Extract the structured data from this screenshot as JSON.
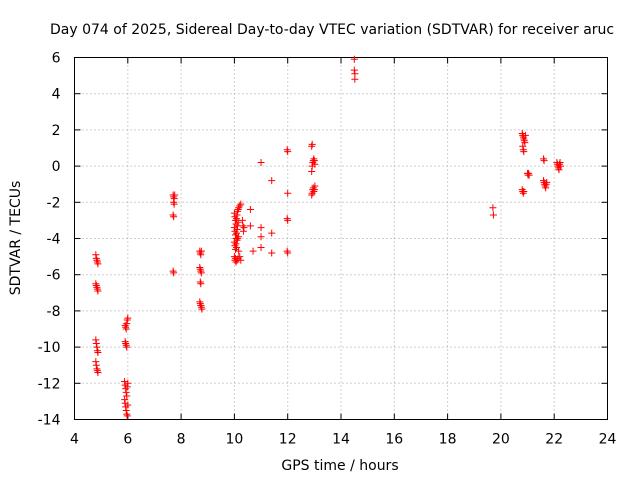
{
  "chart_data": {
    "type": "scatter",
    "title": "Day 074 of 2025, Sidereal Day-to-day VTEC variation (SDTVAR) for receiver aruc",
    "xlabel": "GPS time / hours",
    "ylabel": "SDTVAR / TECUs",
    "xlim": [
      4,
      24
    ],
    "ylim": [
      -14,
      6
    ],
    "xticks": [
      4,
      6,
      8,
      10,
      12,
      14,
      16,
      18,
      20,
      22,
      24
    ],
    "yticks": [
      -14,
      -12,
      -10,
      -8,
      -6,
      -4,
      -2,
      0,
      2,
      4,
      6
    ],
    "grid": true,
    "marker": "plus",
    "color": "#ff0000",
    "series": [
      {
        "name": "SDTVAR",
        "points": [
          [
            4.8,
            -4.9
          ],
          [
            4.82,
            -5.1
          ],
          [
            4.84,
            -5.2
          ],
          [
            4.86,
            -5.3
          ],
          [
            4.88,
            -5.4
          ],
          [
            4.8,
            -6.5
          ],
          [
            4.82,
            -6.6
          ],
          [
            4.84,
            -6.7
          ],
          [
            4.86,
            -6.8
          ],
          [
            4.88,
            -6.9
          ],
          [
            4.8,
            -9.6
          ],
          [
            4.82,
            -9.8
          ],
          [
            4.84,
            -10.0
          ],
          [
            4.86,
            -10.2
          ],
          [
            4.88,
            -10.3
          ],
          [
            4.8,
            -10.8
          ],
          [
            4.82,
            -11.0
          ],
          [
            4.84,
            -11.2
          ],
          [
            4.86,
            -11.3
          ],
          [
            4.88,
            -11.4
          ],
          [
            5.9,
            -8.8
          ],
          [
            5.92,
            -8.9
          ],
          [
            5.94,
            -9.0
          ],
          [
            5.96,
            -8.7
          ],
          [
            5.98,
            -8.5
          ],
          [
            6.0,
            -8.4
          ],
          [
            5.9,
            -9.7
          ],
          [
            5.92,
            -9.8
          ],
          [
            5.94,
            -9.9
          ],
          [
            5.96,
            -10.0
          ],
          [
            5.88,
            -11.9
          ],
          [
            5.9,
            -12.1
          ],
          [
            5.92,
            -12.3
          ],
          [
            5.94,
            -12.5
          ],
          [
            5.96,
            -12.7
          ],
          [
            5.98,
            -12.2
          ],
          [
            6.0,
            -12.0
          ],
          [
            5.88,
            -12.9
          ],
          [
            5.9,
            -13.1
          ],
          [
            5.92,
            -13.3
          ],
          [
            5.94,
            -13.5
          ],
          [
            5.96,
            -13.7
          ],
          [
            5.98,
            -13.8
          ],
          [
            6.0,
            -13.2
          ],
          [
            7.7,
            -1.6
          ],
          [
            7.72,
            -1.7
          ],
          [
            7.74,
            -1.8
          ],
          [
            7.76,
            -1.6
          ],
          [
            7.72,
            -2.0
          ],
          [
            7.74,
            -2.1
          ],
          [
            7.7,
            -2.7
          ],
          [
            7.72,
            -2.8
          ],
          [
            7.7,
            -5.8
          ],
          [
            7.72,
            -5.9
          ],
          [
            8.7,
            -4.7
          ],
          [
            8.72,
            -4.8
          ],
          [
            8.74,
            -4.9
          ],
          [
            8.76,
            -4.7
          ],
          [
            8.7,
            -5.6
          ],
          [
            8.72,
            -5.7
          ],
          [
            8.74,
            -5.8
          ],
          [
            8.76,
            -5.9
          ],
          [
            8.72,
            -6.4
          ],
          [
            8.74,
            -6.5
          ],
          [
            8.7,
            -7.5
          ],
          [
            8.72,
            -7.6
          ],
          [
            8.74,
            -7.7
          ],
          [
            8.76,
            -7.8
          ],
          [
            8.78,
            -7.9
          ],
          [
            10.0,
            -2.6
          ],
          [
            10.02,
            -2.8
          ],
          [
            10.04,
            -3.0
          ],
          [
            10.06,
            -3.2
          ],
          [
            10.08,
            -2.9
          ],
          [
            10.1,
            -2.7
          ],
          [
            10.12,
            -2.5
          ],
          [
            10.14,
            -2.4
          ],
          [
            10.16,
            -2.3
          ],
          [
            10.2,
            -2.2
          ],
          [
            10.24,
            -2.1
          ],
          [
            10.0,
            -3.4
          ],
          [
            10.02,
            -3.6
          ],
          [
            10.04,
            -3.8
          ],
          [
            10.06,
            -4.0
          ],
          [
            10.08,
            -3.7
          ],
          [
            10.1,
            -3.5
          ],
          [
            10.12,
            -3.3
          ],
          [
            10.14,
            -3.1
          ],
          [
            10.16,
            -3.9
          ],
          [
            10.0,
            -4.2
          ],
          [
            10.02,
            -4.4
          ],
          [
            10.04,
            -4.6
          ],
          [
            10.06,
            -4.3
          ],
          [
            10.08,
            -4.5
          ],
          [
            10.1,
            -4.1
          ],
          [
            10.12,
            -4.0
          ],
          [
            10.16,
            -4.7
          ],
          [
            10.0,
            -5.0
          ],
          [
            10.02,
            -5.2
          ],
          [
            10.04,
            -5.1
          ],
          [
            10.06,
            -5.3
          ],
          [
            10.1,
            -5.2
          ],
          [
            10.14,
            -5.1
          ],
          [
            10.2,
            -5.0
          ],
          [
            10.24,
            -5.2
          ],
          [
            10.3,
            -3.0
          ],
          [
            10.32,
            -3.3
          ],
          [
            10.34,
            -3.6
          ],
          [
            10.36,
            -3.4
          ],
          [
            10.6,
            -2.4
          ],
          [
            10.6,
            -3.3
          ],
          [
            10.7,
            -4.7
          ],
          [
            11.0,
            0.2
          ],
          [
            11.0,
            -3.4
          ],
          [
            11.0,
            -3.9
          ],
          [
            11.0,
            -4.5
          ],
          [
            11.4,
            -0.8
          ],
          [
            11.4,
            -3.7
          ],
          [
            11.4,
            -4.8
          ],
          [
            11.98,
            0.9
          ],
          [
            12.0,
            0.8
          ],
          [
            12.0,
            -1.5
          ],
          [
            11.98,
            -2.9
          ],
          [
            12.0,
            -3.0
          ],
          [
            11.98,
            -4.7
          ],
          [
            12.0,
            -4.8
          ],
          [
            12.9,
            1.1
          ],
          [
            12.92,
            1.2
          ],
          [
            12.9,
            -0.3
          ],
          [
            12.92,
            0.0
          ],
          [
            12.94,
            0.2
          ],
          [
            12.96,
            0.3
          ],
          [
            12.98,
            0.4
          ],
          [
            13.0,
            0.3
          ],
          [
            13.02,
            0.1
          ],
          [
            12.9,
            -1.6
          ],
          [
            12.92,
            -1.5
          ],
          [
            12.94,
            -1.3
          ],
          [
            12.96,
            -1.2
          ],
          [
            12.98,
            -1.4
          ],
          [
            13.0,
            -1.3
          ],
          [
            13.02,
            -1.1
          ],
          [
            14.5,
            5.9
          ],
          [
            14.5,
            5.3
          ],
          [
            14.52,
            5.1
          ],
          [
            14.52,
            4.8
          ],
          [
            19.7,
            -2.3
          ],
          [
            19.72,
            -2.7
          ],
          [
            20.8,
            1.8
          ],
          [
            20.82,
            1.7
          ],
          [
            20.84,
            1.6
          ],
          [
            20.86,
            1.5
          ],
          [
            20.88,
            1.4
          ],
          [
            20.9,
            1.3
          ],
          [
            20.92,
            1.7
          ],
          [
            20.82,
            1.1
          ],
          [
            20.84,
            0.9
          ],
          [
            20.86,
            0.8
          ],
          [
            20.8,
            -1.3
          ],
          [
            20.82,
            -1.4
          ],
          [
            20.84,
            -1.5
          ],
          [
            20.86,
            -1.4
          ],
          [
            21.0,
            -0.4
          ],
          [
            21.02,
            -0.5
          ],
          [
            21.04,
            -0.4
          ],
          [
            21.06,
            -0.5
          ],
          [
            21.6,
            0.4
          ],
          [
            21.62,
            0.3
          ],
          [
            21.6,
            -0.8
          ],
          [
            21.62,
            -0.9
          ],
          [
            21.64,
            -1.0
          ],
          [
            21.66,
            -1.1
          ],
          [
            21.68,
            -1.2
          ],
          [
            21.7,
            -1.0
          ],
          [
            21.72,
            -0.9
          ],
          [
            22.1,
            0.2
          ],
          [
            22.12,
            0.1
          ],
          [
            22.14,
            0.0
          ],
          [
            22.16,
            -0.1
          ],
          [
            22.18,
            -0.2
          ],
          [
            22.2,
            0.1
          ],
          [
            22.22,
            0.2
          ],
          [
            22.24,
            0.0
          ]
        ]
      }
    ]
  }
}
